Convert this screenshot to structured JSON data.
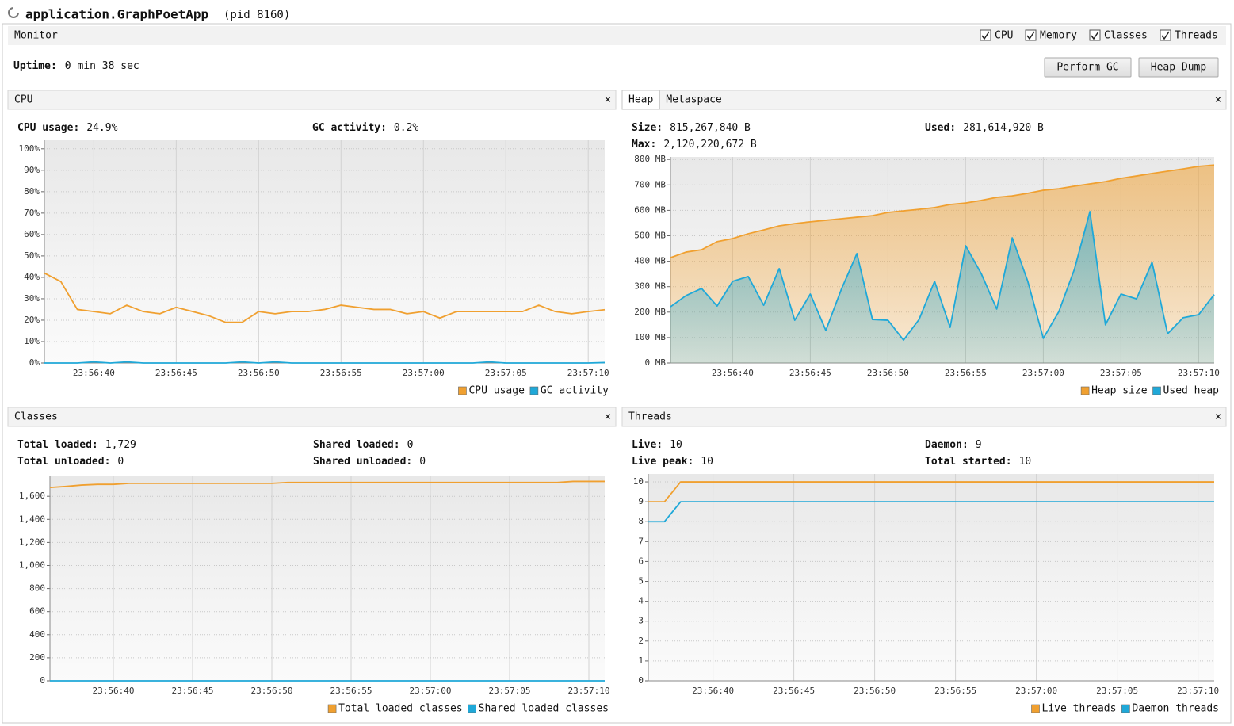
{
  "window": {
    "title": "application.GraphPoetApp",
    "pid": "(pid 8160)",
    "tab": "Monitor",
    "checkboxes": [
      "CPU",
      "Memory",
      "Classes",
      "Threads"
    ],
    "uptime_label": "Uptime:",
    "uptime": "0 min 38 sec",
    "buttons": [
      "Perform GC",
      "Heap Dump"
    ],
    "panels": [
      {
        "tabs": [
          "CPU"
        ],
        "stats": [
          {
            "label": "CPU usage:",
            "value": "24.9%"
          },
          {
            "label": "GC activity:",
            "value": "0.2%"
          }
        ]
      },
      {
        "tabs": [
          "Heap",
          "Metaspace"
        ],
        "stats": [
          {
            "label": "Size:",
            "value": "815,267,840 B"
          },
          {
            "label": "Used:",
            "value": "281,614,920 B"
          },
          {
            "label": "Max:",
            "value": "2,120,220,672 B"
          }
        ]
      },
      {
        "tabs": [
          "Classes"
        ],
        "stats": [
          {
            "label": "Total loaded:",
            "value": "1,729"
          },
          {
            "label": "Shared loaded:",
            "value": "0"
          },
          {
            "label": "Total unloaded:",
            "value": "0"
          },
          {
            "label": "Shared unloaded:",
            "value": "0"
          }
        ]
      },
      {
        "tabs": [
          "Threads"
        ],
        "stats": [
          {
            "label": "Live:",
            "value": "10"
          },
          {
            "label": "Daemon:",
            "value": "9"
          },
          {
            "label": "Live peak:",
            "value": "10"
          },
          {
            "label": "Total started:",
            "value": "10"
          }
        ]
      }
    ]
  },
  "chart_data": [
    {
      "type": "line",
      "x": [
        "23:56:37",
        "23:56:38",
        "23:56:39",
        "23:56:40",
        "23:56:41",
        "23:56:42",
        "23:56:43",
        "23:56:44",
        "23:56:45",
        "23:56:46",
        "23:56:47",
        "23:56:48",
        "23:56:49",
        "23:56:50",
        "23:56:51",
        "23:56:52",
        "23:56:53",
        "23:56:54",
        "23:56:55",
        "23:56:56",
        "23:56:57",
        "23:56:58",
        "23:56:59",
        "23:57:00",
        "23:57:01",
        "23:57:02",
        "23:57:03",
        "23:57:04",
        "23:57:05",
        "23:57:06",
        "23:57:07",
        "23:57:08",
        "23:57:09",
        "23:57:10",
        "23:57:11"
      ],
      "series": [
        {
          "name": "CPU usage",
          "color": "#f0a030",
          "values": [
            42,
            38,
            25,
            24,
            23,
            27,
            24,
            23,
            26,
            24,
            22,
            19,
            19,
            24,
            23,
            24,
            24,
            25,
            27,
            26,
            25,
            25,
            23,
            24,
            21,
            24,
            24,
            24,
            24,
            24,
            27,
            24,
            23,
            24,
            24.9
          ]
        },
        {
          "name": "GC activity",
          "color": "#1fa8d8",
          "values": [
            0,
            0,
            0,
            0.5,
            0,
            0.5,
            0,
            0,
            0,
            0,
            0,
            0,
            0.5,
            0,
            0.5,
            0,
            0,
            0,
            0,
            0,
            0,
            0,
            0,
            0,
            0,
            0,
            0,
            0.5,
            0,
            0,
            0,
            0,
            0,
            0,
            0.2
          ]
        }
      ],
      "xlim": [
        "23:56:37",
        "23:57:11"
      ],
      "ylim": [
        0,
        104
      ],
      "xticks": [
        "23:56:40",
        "23:56:45",
        "23:56:50",
        "23:56:55",
        "23:57:00",
        "23:57:05",
        "23:57:10"
      ],
      "yticks": [
        {
          "value": 0,
          "label": "0%"
        },
        {
          "value": 10,
          "label": "10%"
        },
        {
          "value": 20,
          "label": "20%"
        },
        {
          "value": 30,
          "label": "30%"
        },
        {
          "value": 40,
          "label": "40%"
        },
        {
          "value": 50,
          "label": "50%"
        },
        {
          "value": 60,
          "label": "60%"
        },
        {
          "value": 70,
          "label": "70%"
        },
        {
          "value": 80,
          "label": "80%"
        },
        {
          "value": 90,
          "label": "90%"
        },
        {
          "value": 100,
          "label": "100%"
        }
      ],
      "grid": true,
      "legend": "bottom-right"
    },
    {
      "type": "area",
      "x": [
        "23:56:36",
        "23:56:37",
        "23:56:38",
        "23:56:39",
        "23:56:40",
        "23:56:41",
        "23:56:42",
        "23:56:43",
        "23:56:44",
        "23:56:45",
        "23:56:46",
        "23:56:47",
        "23:56:48",
        "23:56:49",
        "23:56:50",
        "23:56:51",
        "23:56:52",
        "23:56:53",
        "23:56:54",
        "23:56:55",
        "23:56:56",
        "23:56:57",
        "23:56:58",
        "23:56:59",
        "23:57:00",
        "23:57:01",
        "23:57:02",
        "23:57:03",
        "23:57:04",
        "23:57:05",
        "23:57:06",
        "23:57:07",
        "23:57:08",
        "23:57:09",
        "23:57:10",
        "23:57:11"
      ],
      "series": [
        {
          "name": "Heap size",
          "color": "#f0a030",
          "values": [
            414,
            436,
            445,
            477,
            489,
            508,
            523,
            539,
            548,
            555,
            561,
            567,
            573,
            579,
            592,
            598,
            604,
            611,
            623,
            629,
            639,
            651,
            657,
            667,
            679,
            685,
            695,
            704,
            713,
            726,
            735,
            745,
            754,
            763,
            773,
            778
          ]
        },
        {
          "name": "Used heap",
          "color": "#1fa8d8",
          "values": [
            221,
            265,
            293,
            224,
            321,
            340,
            227,
            371,
            168,
            271,
            128,
            290,
            430,
            171,
            168,
            90,
            171,
            321,
            140,
            461,
            352,
            212,
            492,
            321,
            97,
            202,
            368,
            595,
            150,
            271,
            252,
            396,
            115,
            178,
            190,
            269
          ]
        }
      ],
      "xlim": [
        "23:56:36",
        "23:57:11"
      ],
      "ylim": [
        0,
        810
      ],
      "xticks": [
        "23:56:40",
        "23:56:45",
        "23:56:50",
        "23:56:55",
        "23:57:00",
        "23:57:05",
        "23:57:10"
      ],
      "yticks": [
        {
          "value": 0,
          "label": "0 MB"
        },
        {
          "value": 100,
          "label": "100 MB"
        },
        {
          "value": 200,
          "label": "200 MB"
        },
        {
          "value": 300,
          "label": "300 MB"
        },
        {
          "value": 400,
          "label": "400 MB"
        },
        {
          "value": 500,
          "label": "500 MB"
        },
        {
          "value": 600,
          "label": "600 MB"
        },
        {
          "value": 700,
          "label": "700 MB"
        },
        {
          "value": 800,
          "label": "800 MB"
        }
      ],
      "grid": true,
      "legend": "bottom-right"
    },
    {
      "type": "line",
      "x": [
        "23:56:36",
        "23:56:37",
        "23:56:38",
        "23:56:39",
        "23:56:40",
        "23:56:41",
        "23:56:42",
        "23:56:43",
        "23:56:44",
        "23:56:45",
        "23:56:46",
        "23:56:47",
        "23:56:48",
        "23:56:49",
        "23:56:50",
        "23:56:51",
        "23:56:52",
        "23:56:53",
        "23:56:54",
        "23:56:55",
        "23:56:56",
        "23:56:57",
        "23:56:58",
        "23:56:59",
        "23:57:00",
        "23:57:01",
        "23:57:02",
        "23:57:03",
        "23:57:04",
        "23:57:05",
        "23:57:06",
        "23:57:07",
        "23:57:08",
        "23:57:09",
        "23:57:10",
        "23:57:11"
      ],
      "series": [
        {
          "name": "Total loaded classes",
          "color": "#f0a030",
          "values": [
            1676,
            1685,
            1697,
            1703,
            1703,
            1712,
            1712,
            1712,
            1712,
            1712,
            1712,
            1712,
            1712,
            1712,
            1712,
            1720,
            1720,
            1720,
            1720,
            1720,
            1720,
            1720,
            1720,
            1720,
            1720,
            1720,
            1720,
            1720,
            1720,
            1720,
            1720,
            1720,
            1720,
            1729,
            1729,
            1729
          ]
        },
        {
          "name": "Shared loaded classes",
          "color": "#1fa8d8",
          "values": [
            0,
            0,
            0,
            0,
            0,
            0,
            0,
            0,
            0,
            0,
            0,
            0,
            0,
            0,
            0,
            0,
            0,
            0,
            0,
            0,
            0,
            0,
            0,
            0,
            0,
            0,
            0,
            0,
            0,
            0,
            0,
            0,
            0,
            0,
            0,
            0
          ]
        }
      ],
      "xlim": [
        "23:56:36",
        "23:57:11"
      ],
      "ylim": [
        0,
        1780
      ],
      "xticks": [
        "23:56:40",
        "23:56:45",
        "23:56:50",
        "23:56:55",
        "23:57:00",
        "23:57:05",
        "23:57:10"
      ],
      "yticks": [
        0,
        200,
        400,
        600,
        800,
        {
          "value": 1000,
          "label": "1,000"
        },
        {
          "value": 1200,
          "label": "1,200"
        },
        {
          "value": 1400,
          "label": "1,400"
        },
        {
          "value": 1600,
          "label": "1,600"
        }
      ],
      "grid": true,
      "legend": "bottom-right"
    },
    {
      "type": "line",
      "x": [
        "23:56:36",
        "23:56:37",
        "23:56:38",
        "23:56:39",
        "23:56:40",
        "23:56:41",
        "23:56:42",
        "23:56:43",
        "23:56:44",
        "23:56:45",
        "23:56:46",
        "23:56:47",
        "23:56:48",
        "23:56:49",
        "23:56:50",
        "23:56:51",
        "23:56:52",
        "23:56:53",
        "23:56:54",
        "23:56:55",
        "23:56:56",
        "23:56:57",
        "23:56:58",
        "23:56:59",
        "23:57:00",
        "23:57:01",
        "23:57:02",
        "23:57:03",
        "23:57:04",
        "23:57:05",
        "23:57:06",
        "23:57:07",
        "23:57:08",
        "23:57:09",
        "23:57:10",
        "23:57:11"
      ],
      "series": [
        {
          "name": "Live threads",
          "color": "#f0a030",
          "values": [
            9,
            9,
            10,
            10,
            10,
            10,
            10,
            10,
            10,
            10,
            10,
            10,
            10,
            10,
            10,
            10,
            10,
            10,
            10,
            10,
            10,
            10,
            10,
            10,
            10,
            10,
            10,
            10,
            10,
            10,
            10,
            10,
            10,
            10,
            10,
            10
          ]
        },
        {
          "name": "Daemon threads",
          "color": "#1fa8d8",
          "values": [
            8,
            8,
            9,
            9,
            9,
            9,
            9,
            9,
            9,
            9,
            9,
            9,
            9,
            9,
            9,
            9,
            9,
            9,
            9,
            9,
            9,
            9,
            9,
            9,
            9,
            9,
            9,
            9,
            9,
            9,
            9,
            9,
            9,
            9,
            9,
            9
          ]
        }
      ],
      "xlim": [
        "23:56:36",
        "23:57:11"
      ],
      "ylim": [
        0,
        10.4
      ],
      "xticks": [
        "23:56:40",
        "23:56:45",
        "23:56:50",
        "23:56:55",
        "23:57:00",
        "23:57:05",
        "23:57:10"
      ],
      "yticks": [
        0,
        1,
        2,
        3,
        4,
        5,
        6,
        7,
        8,
        9,
        10
      ],
      "grid": true,
      "legend": "bottom-right"
    }
  ]
}
